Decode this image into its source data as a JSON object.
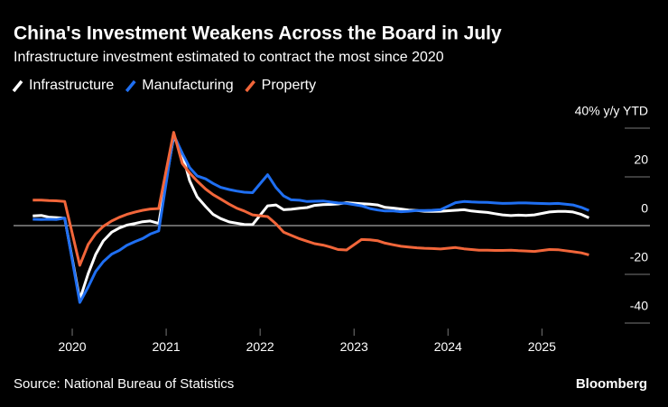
{
  "chart_data": {
    "type": "line",
    "title": "China's Investment Weakens Across the Board in July",
    "subtitle": "Infrastructure investment estimated to contract the most since 2020",
    "source": "Source: National Bureau of Statistics",
    "brand": "Bloomberg",
    "x": [
      2019.58,
      2019.67,
      2019.75,
      2019.83,
      2019.92,
      2020.08,
      2020.17,
      2020.25,
      2020.33,
      2020.42,
      2020.5,
      2020.58,
      2020.67,
      2020.75,
      2020.83,
      2020.92,
      2021.08,
      2021.17,
      2021.25,
      2021.33,
      2021.42,
      2021.5,
      2021.58,
      2021.67,
      2021.75,
      2021.83,
      2021.92,
      2022.08,
      2022.17,
      2022.25,
      2022.33,
      2022.42,
      2022.5,
      2022.58,
      2022.67,
      2022.75,
      2022.83,
      2022.92,
      2023.08,
      2023.17,
      2023.25,
      2023.33,
      2023.42,
      2023.5,
      2023.58,
      2023.67,
      2023.75,
      2023.83,
      2023.92,
      2024.08,
      2024.17,
      2024.25,
      2024.33,
      2024.42,
      2024.5,
      2024.58,
      2024.67,
      2024.75,
      2024.83,
      2024.92,
      2025.08,
      2025.17,
      2025.25,
      2025.33,
      2025.42,
      2025.5
    ],
    "series": [
      {
        "name": "Infrastructure",
        "color": "#ffffff",
        "values": [
          4.0,
          4.2,
          3.5,
          3.3,
          3.0,
          -30.3,
          -19.7,
          -11.8,
          -6.3,
          -2.7,
          -1.0,
          0.2,
          0.9,
          1.6,
          1.9,
          0.9,
          36.6,
          29.7,
          18.4,
          11.8,
          7.8,
          4.6,
          2.9,
          1.5,
          1.0,
          0.5,
          0.4,
          8.1,
          8.5,
          6.5,
          6.7,
          7.1,
          7.4,
          8.3,
          8.6,
          8.7,
          8.9,
          9.4,
          9.0,
          8.8,
          8.5,
          7.5,
          7.2,
          6.8,
          6.4,
          6.2,
          5.9,
          5.8,
          5.9,
          6.3,
          6.5,
          6.0,
          5.7,
          5.4,
          4.9,
          4.4,
          4.1,
          4.3,
          4.2,
          4.4,
          5.6,
          5.8,
          5.8,
          5.6,
          4.6,
          3.2
        ]
      },
      {
        "name": "Manufacturing",
        "color": "#1f6ff2",
        "values": [
          2.6,
          2.5,
          2.6,
          2.5,
          3.1,
          -31.5,
          -25.2,
          -18.8,
          -14.8,
          -11.7,
          -10.2,
          -8.1,
          -6.5,
          -5.3,
          -3.5,
          -2.2,
          37.3,
          29.8,
          23.8,
          20.4,
          19.2,
          17.3,
          15.7,
          14.8,
          14.2,
          13.7,
          13.5,
          20.9,
          15.6,
          12.2,
          10.6,
          10.4,
          9.9,
          10.0,
          10.1,
          9.7,
          9.3,
          9.1,
          8.1,
          7.0,
          6.4,
          6.0,
          6.0,
          5.7,
          5.9,
          6.2,
          6.2,
          6.3,
          6.5,
          9.4,
          9.9,
          9.7,
          9.6,
          9.5,
          9.3,
          9.1,
          9.2,
          9.3,
          9.3,
          9.2,
          9.0,
          9.1,
          8.8,
          8.5,
          7.5,
          6.2
        ]
      },
      {
        "name": "Property",
        "color": "#f2663a",
        "values": [
          10.5,
          10.5,
          10.3,
          10.2,
          9.9,
          -16.3,
          -7.7,
          -3.3,
          -0.3,
          1.9,
          3.4,
          4.6,
          5.6,
          6.3,
          6.8,
          7.0,
          38.3,
          25.6,
          21.6,
          18.3,
          15.0,
          12.7,
          10.9,
          8.8,
          7.2,
          6.0,
          4.4,
          3.7,
          0.7,
          -2.7,
          -4.0,
          -5.4,
          -6.4,
          -7.4,
          -8.0,
          -8.8,
          -9.8,
          -10.0,
          -5.7,
          -5.8,
          -6.2,
          -7.2,
          -7.9,
          -8.5,
          -8.8,
          -9.1,
          -9.3,
          -9.4,
          -9.6,
          -9.0,
          -9.5,
          -9.8,
          -10.1,
          -10.1,
          -10.2,
          -10.2,
          -10.1,
          -10.3,
          -10.4,
          -10.6,
          -9.8,
          -9.9,
          -10.3,
          -10.7,
          -11.2,
          -12.0
        ]
      }
    ],
    "xlim": [
      2019.5,
      2025.9
    ],
    "xticks": [
      2020,
      2021,
      2022,
      2023,
      2024,
      2025
    ],
    "ylim": [
      -43,
      44
    ],
    "yticks": [
      {
        "value": 40,
        "label": "40% y/y YTD"
      },
      20,
      0,
      -20,
      -40
    ]
  }
}
